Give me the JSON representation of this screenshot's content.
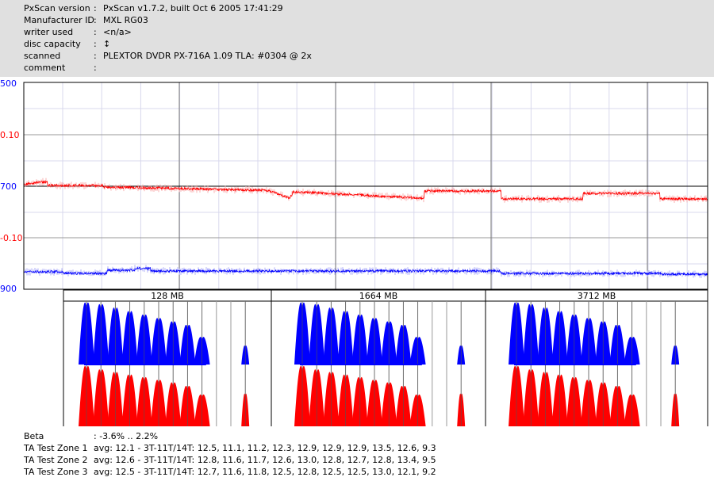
{
  "header": {
    "rows": [
      {
        "key": "PxScan version",
        "value": "PxScan v1.7.2, built Oct  6 2005 17:41:29"
      },
      {
        "key": "Manufacturer ID",
        "value": "MXL RG03"
      },
      {
        "key": "writer used",
        "value": "<n/a>"
      },
      {
        "key": "disc capacity",
        "value": "↕"
      },
      {
        "key": "scanned",
        "value": "PLEXTOR DVDR PX-716A 1.09 TLA: #0304 @ 2x"
      },
      {
        "key": "comment",
        "value": ""
      }
    ]
  },
  "chart": {
    "y_labels": [
      {
        "text": "500",
        "color": "#0000ff"
      },
      {
        "text": "0.10",
        "color": "#ff0000"
      },
      {
        "text": "700",
        "color": "#0000ff"
      },
      {
        "text": "-0.10",
        "color": "#ff0000"
      },
      {
        "text": "900",
        "color": "#0000ff"
      }
    ],
    "zones": [
      "128 MB",
      "1664 MB",
      "3712 MB"
    ],
    "colors": {
      "red": "#ff0000",
      "blue": "#0000ff"
    }
  },
  "footer": {
    "beta": {
      "key": "Beta",
      "value": ": -3.6% .. 2.2%"
    },
    "zones": [
      {
        "key": "TA Test Zone 1",
        "value": "avg: 12.1 - 3T-11T/14T: 12.5, 11.1, 11.2, 12.3, 12.9, 12.9, 12.9, 13.5, 12.6, 9.3"
      },
      {
        "key": "TA Test Zone 2",
        "value": "avg: 12.6 - 3T-11T/14T: 12.8, 11.6, 11.7, 12.6, 13.0, 12.8, 12.7, 12.8, 13.4, 9.5"
      },
      {
        "key": "TA Test Zone 3",
        "value": "avg: 12.5 - 3T-11T/14T: 12.7, 11.6, 11.8, 12.5, 12.8, 12.5, 12.5, 13.0, 12.1, 9.2"
      }
    ]
  }
}
